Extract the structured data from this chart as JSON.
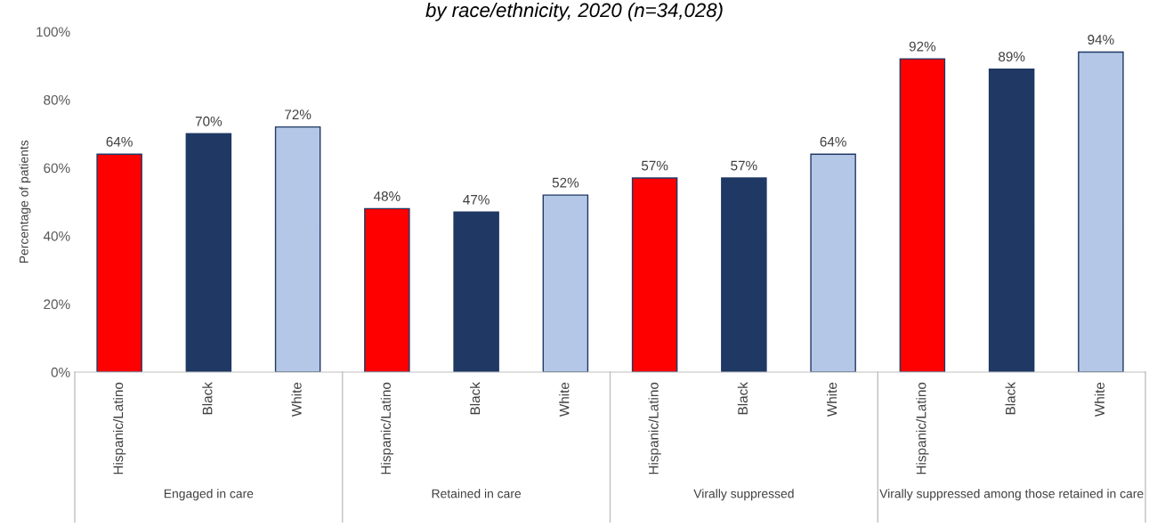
{
  "chart_data": {
    "type": "bar",
    "subtitle": "by race/ethnicity, 2020 (n=34,028)",
    "ylabel": "Percentage of patients",
    "categories": [
      "Hispanic/Latino",
      "Black",
      "White",
      "Hispanic/Latino",
      "Black",
      "White",
      "Hispanic/Latino",
      "Black",
      "White",
      "Hispanic/Latino",
      "Black",
      "White"
    ],
    "values": [
      64,
      70,
      72,
      48,
      47,
      52,
      57,
      57,
      64,
      92,
      89,
      94
    ],
    "colors": [
      "#ff0000",
      "#1f3864",
      "#b4c7e7",
      "#ff0000",
      "#1f3864",
      "#b4c7e7",
      "#ff0000",
      "#1f3864",
      "#b4c7e7",
      "#ff0000",
      "#1f3864",
      "#b4c7e7"
    ],
    "value_labels": [
      "64%",
      "70%",
      "72%",
      "48%",
      "47%",
      "52%",
      "57%",
      "57%",
      "64%",
      "92%",
      "89%",
      "94%"
    ],
    "ylim": [
      0,
      100
    ],
    "yticks": [
      {
        "value": 0,
        "label": "0%"
      },
      {
        "value": 20,
        "label": "20%"
      },
      {
        "value": 40,
        "label": "40%"
      },
      {
        "value": 60,
        "label": "60%"
      },
      {
        "value": 80,
        "label": "80%"
      },
      {
        "value": 100,
        "label": "100%"
      }
    ],
    "annotations": [
      "Engaged in care",
      "Retained in care",
      "Virally suppressed",
      "Virally suppressed among those retained in care"
    ],
    "grid": false,
    "legend": false
  }
}
